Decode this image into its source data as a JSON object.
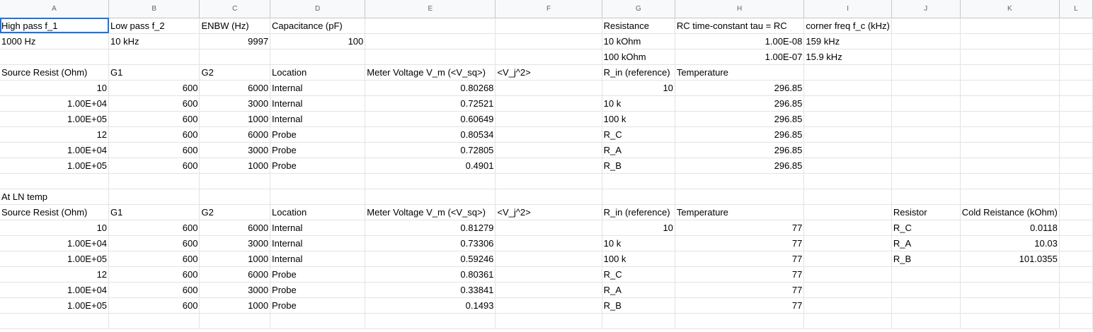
{
  "columns": [
    "A",
    "B",
    "C",
    "D",
    "E",
    "F",
    "G",
    "H",
    "I",
    "J",
    "K",
    "L"
  ],
  "rows": [
    [
      "High pass f_1",
      "Low pass f_2",
      "ENBW (Hz)",
      "Capacitance (pF)",
      "",
      "",
      "Resistance",
      "RC time-constant tau = RC",
      "corner freq f_c (kHz)",
      "",
      "",
      ""
    ],
    [
      "1000 Hz",
      "10 kHz",
      "9997",
      "100",
      "",
      "",
      "10 kOhm",
      "1.00E-08",
      "159 kHz",
      "",
      "",
      ""
    ],
    [
      "",
      "",
      "",
      "",
      "",
      "",
      "100 kOhm",
      "1.00E-07",
      "15.9 kHz",
      "",
      "",
      ""
    ],
    [
      "Source Resist (Ohm)",
      "G1",
      "G2",
      "Location",
      "Meter Voltage V_m (<V_sq>)",
      "<V_j^2>",
      "R_in (reference)",
      "Temperature",
      "",
      "",
      "",
      ""
    ],
    [
      "10",
      "600",
      "6000",
      "Internal",
      "0.80268",
      "",
      "10",
      "296.85",
      "",
      "",
      "",
      ""
    ],
    [
      "1.00E+04",
      "600",
      "3000",
      "Internal",
      "0.72521",
      "",
      "10 k",
      "296.85",
      "",
      "",
      "",
      ""
    ],
    [
      "1.00E+05",
      "600",
      "1000",
      "Internal",
      "0.60649",
      "",
      "100 k",
      "296.85",
      "",
      "",
      "",
      ""
    ],
    [
      "12",
      "600",
      "6000",
      "Probe",
      "0.80534",
      "",
      "R_C",
      "296.85",
      "",
      "",
      "",
      ""
    ],
    [
      "1.00E+04",
      "600",
      "3000",
      "Probe",
      "0.72805",
      "",
      "R_A",
      "296.85",
      "",
      "",
      "",
      ""
    ],
    [
      "1.00E+05",
      "600",
      "1000",
      "Probe",
      "0.4901",
      "",
      "R_B",
      "296.85",
      "",
      "",
      "",
      ""
    ],
    [
      "",
      "",
      "",
      "",
      "",
      "",
      "",
      "",
      "",
      "",
      "",
      ""
    ],
    [
      "At LN temp",
      "",
      "",
      "",
      "",
      "",
      "",
      "",
      "",
      "",
      "",
      ""
    ],
    [
      "Source Resist (Ohm)",
      "G1",
      "G2",
      "Location",
      "Meter Voltage V_m (<V_sq>)",
      "<V_j^2>",
      "R_in (reference)",
      "Temperature",
      "",
      "Resistor",
      "Cold Reistance (kOhm)",
      ""
    ],
    [
      "10",
      "600",
      "6000",
      "Internal",
      "0.81279",
      "",
      "10",
      "77",
      "",
      "R_C",
      "0.0118",
      ""
    ],
    [
      "1.00E+04",
      "600",
      "3000",
      "Internal",
      "0.73306",
      "",
      "10 k",
      "77",
      "",
      "R_A",
      "10.03",
      ""
    ],
    [
      "1.00E+05",
      "600",
      "1000",
      "Internal",
      "0.59246",
      "",
      "100 k",
      "77",
      "",
      "R_B",
      "101.0355",
      ""
    ],
    [
      "12",
      "600",
      "6000",
      "Probe",
      "0.80361",
      "",
      "R_C",
      "77",
      "",
      "",
      "",
      ""
    ],
    [
      "1.00E+04",
      "600",
      "3000",
      "Probe",
      "0.33841",
      "",
      "R_A",
      "77",
      "",
      "",
      "",
      ""
    ],
    [
      "1.00E+05",
      "600",
      "1000",
      "Probe",
      "0.1493",
      "",
      "R_B",
      "77",
      "",
      "",
      "",
      ""
    ],
    [
      "",
      "",
      "",
      "",
      "",
      "",
      "",
      "",
      "",
      "",
      "",
      ""
    ]
  ],
  "right_aligned": [
    [
      1,
      2
    ],
    [
      1,
      3
    ],
    [
      1,
      7
    ],
    [
      2,
      7
    ],
    [
      4,
      0
    ],
    [
      4,
      1
    ],
    [
      4,
      2
    ],
    [
      4,
      4
    ],
    [
      4,
      6
    ],
    [
      4,
      7
    ],
    [
      5,
      0
    ],
    [
      5,
      1
    ],
    [
      5,
      2
    ],
    [
      5,
      4
    ],
    [
      5,
      7
    ],
    [
      6,
      0
    ],
    [
      6,
      1
    ],
    [
      6,
      2
    ],
    [
      6,
      4
    ],
    [
      6,
      7
    ],
    [
      7,
      0
    ],
    [
      7,
      1
    ],
    [
      7,
      2
    ],
    [
      7,
      4
    ],
    [
      7,
      7
    ],
    [
      8,
      0
    ],
    [
      8,
      1
    ],
    [
      8,
      2
    ],
    [
      8,
      4
    ],
    [
      8,
      7
    ],
    [
      9,
      0
    ],
    [
      9,
      1
    ],
    [
      9,
      2
    ],
    [
      9,
      4
    ],
    [
      9,
      7
    ],
    [
      13,
      0
    ],
    [
      13,
      1
    ],
    [
      13,
      2
    ],
    [
      13,
      4
    ],
    [
      13,
      6
    ],
    [
      13,
      7
    ],
    [
      13,
      10
    ],
    [
      14,
      0
    ],
    [
      14,
      1
    ],
    [
      14,
      2
    ],
    [
      14,
      4
    ],
    [
      14,
      7
    ],
    [
      14,
      10
    ],
    [
      15,
      0
    ],
    [
      15,
      1
    ],
    [
      15,
      2
    ],
    [
      15,
      4
    ],
    [
      15,
      7
    ],
    [
      15,
      10
    ],
    [
      16,
      0
    ],
    [
      16,
      1
    ],
    [
      16,
      2
    ],
    [
      16,
      4
    ],
    [
      16,
      7
    ],
    [
      17,
      0
    ],
    [
      17,
      1
    ],
    [
      17,
      2
    ],
    [
      17,
      4
    ],
    [
      17,
      7
    ],
    [
      18,
      0
    ],
    [
      18,
      1
    ],
    [
      18,
      2
    ],
    [
      18,
      4
    ],
    [
      18,
      7
    ]
  ],
  "selected_cell": [
    0,
    0
  ]
}
